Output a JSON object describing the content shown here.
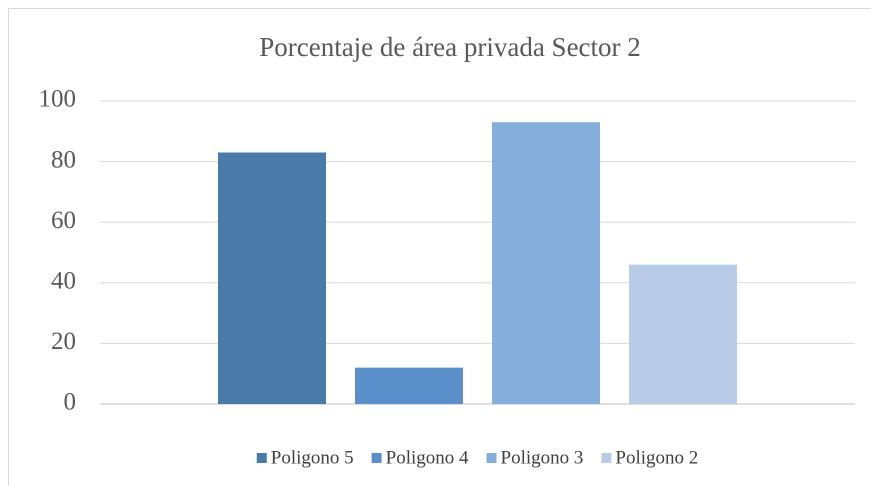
{
  "chart_data": {
    "type": "bar",
    "title": "Porcentaje de área privada Sector 2",
    "series": [
      {
        "name": "Poligono 5",
        "color": "#4a7aa8",
        "values": [
          83
        ]
      },
      {
        "name": "Poligono 4",
        "color": "#5b8fc9",
        "values": [
          12
        ]
      },
      {
        "name": "Poligono 3",
        "color": "#85aedc",
        "values": [
          93
        ]
      },
      {
        "name": "Poligono 2",
        "color": "#b8cce8",
        "values": [
          46
        ]
      }
    ],
    "ylim": [
      0,
      100
    ],
    "yticks": [
      0,
      20,
      40,
      60,
      80,
      100
    ],
    "grid": true,
    "legend": "bottom"
  }
}
